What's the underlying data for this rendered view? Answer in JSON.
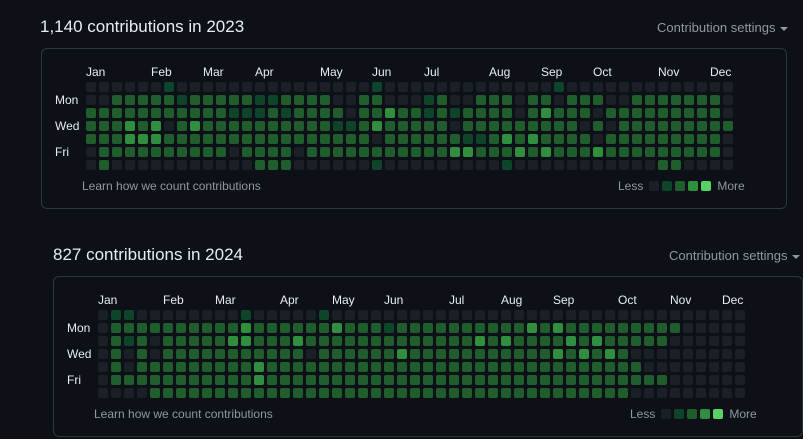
{
  "colors": {
    "level0": "#1b1f26",
    "level1": "#0e4429",
    "level2": "#1f5e2c",
    "level3": "#2f8f3f",
    "level4": "#56d364",
    "border": "#30363d",
    "muted": "#9198a1"
  },
  "panels": [
    {
      "year": 2023,
      "heading": "1,140 contributions in 2023",
      "settings_label": "Contribution settings",
      "months": [
        "Jan",
        "Feb",
        "Mar",
        "Apr",
        "May",
        "Jun",
        "Jul",
        "Aug",
        "Sep",
        "Oct",
        "Nov",
        "Dec"
      ],
      "day_labels": [
        "Mon",
        "Wed",
        "Fri"
      ],
      "learn_label": "Learn how we count contributions",
      "legend_less": "Less",
      "legend_more": "More",
      "levels": [
        "00000010000000000000001000000000000010000000000000",
        "00222221222221122220022000120022202202220022222220",
        "22222222222111212222022322121222202322202222222220",
        "22232302322222222221123222220222222222020222222222",
        "22233322222222222222220222222112323222202222222220",
        "02222222222022220222222222223322232322232222222220",
        "02000000000002220000001000000000100000000000220000"
      ]
    },
    {
      "year": 2024,
      "heading": "827 contributions in 2024",
      "settings_label": "Contribution settings",
      "months": [
        "Jan",
        "Feb",
        "Mar",
        "Apr",
        "May",
        "Jun",
        "Jul",
        "Aug",
        "Sep",
        "Oct",
        "Nov",
        "Dec"
      ],
      "day_labels": [
        "Mon",
        "Wed",
        "Fri"
      ],
      "learn_label": "Learn how we count contributions",
      "legend_less": "Less",
      "legend_more": "More",
      "levels": [
        "01100000000100000100000000000000000000000000000000",
        "02222222222322222232221222222222232322222222200000",
        "02120222223322232222222222222323222232322222000000",
        "02020222222222220222222322222222222323232000000000",
        "02022222222232222222222222222222222222222200000000",
        "02222222222232222222222222222222222222222222000000",
        "00002222222222222222222222222222222222222000000000"
      ]
    }
  ]
}
